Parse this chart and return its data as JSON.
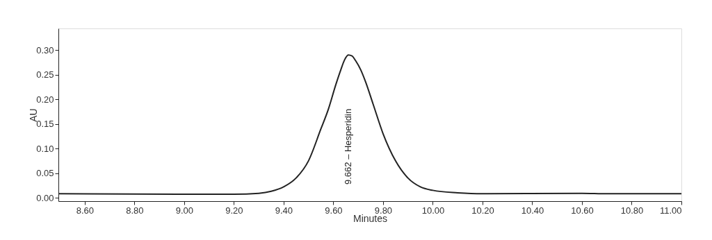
{
  "chart_data": {
    "type": "line",
    "xlabel": "Minutes",
    "ylabel": "AU",
    "x": [
      8.494,
      9.0,
      9.2,
      9.3,
      9.35,
      9.4,
      9.45,
      9.5,
      9.55,
      9.58,
      9.61,
      9.63,
      9.645,
      9.66,
      9.675,
      9.69,
      9.71,
      9.73,
      9.76,
      9.8,
      9.85,
      9.9,
      9.95,
      10.0,
      10.1,
      10.2,
      10.6,
      10.7,
      11.0
    ],
    "series": [
      {
        "color": "#222222",
        "values": [
          0.008,
          0.007,
          0.007,
          0.009,
          0.013,
          0.022,
          0.04,
          0.075,
          0.14,
          0.18,
          0.23,
          0.26,
          0.28,
          0.29,
          0.288,
          0.278,
          0.26,
          0.235,
          0.19,
          0.13,
          0.075,
          0.04,
          0.022,
          0.015,
          0.01,
          0.008,
          0.009,
          0.008,
          0.008
        ]
      }
    ],
    "xlim": [
      8.494,
      11.0
    ],
    "xticks": [
      {
        "value": 8.6,
        "label": "8.60"
      },
      {
        "value": 8.8,
        "label": "8.80"
      },
      {
        "value": 9.0,
        "label": "9.00"
      },
      {
        "value": 9.2,
        "label": "9.20"
      },
      {
        "value": 9.4,
        "label": "9.40"
      },
      {
        "value": 9.6,
        "label": "9.60"
      },
      {
        "value": 9.8,
        "label": "9.80"
      },
      {
        "value": 10.0,
        "label": "10.00"
      },
      {
        "value": 10.2,
        "label": "10.20"
      },
      {
        "value": 10.4,
        "label": "10.40"
      },
      {
        "value": 10.6,
        "label": "10.60"
      },
      {
        "value": 10.8,
        "label": "10.80"
      },
      {
        "value": 11.0,
        "label": "11.00"
      }
    ],
    "ylim": [
      -0.007,
      0.344
    ],
    "yticks": [
      {
        "value": 0.0,
        "label": "0.00"
      },
      {
        "value": 0.05,
        "label": "0.05"
      },
      {
        "value": 0.1,
        "label": "0.10"
      },
      {
        "value": 0.15,
        "label": "0.15"
      },
      {
        "value": 0.2,
        "label": "0.20"
      },
      {
        "value": 0.25,
        "label": "0.25"
      },
      {
        "value": 0.3,
        "label": "0.30"
      }
    ],
    "annotations": [
      "9.662 – Hesperidin"
    ],
    "grid": false,
    "marker": "none",
    "line_style": "solid"
  }
}
